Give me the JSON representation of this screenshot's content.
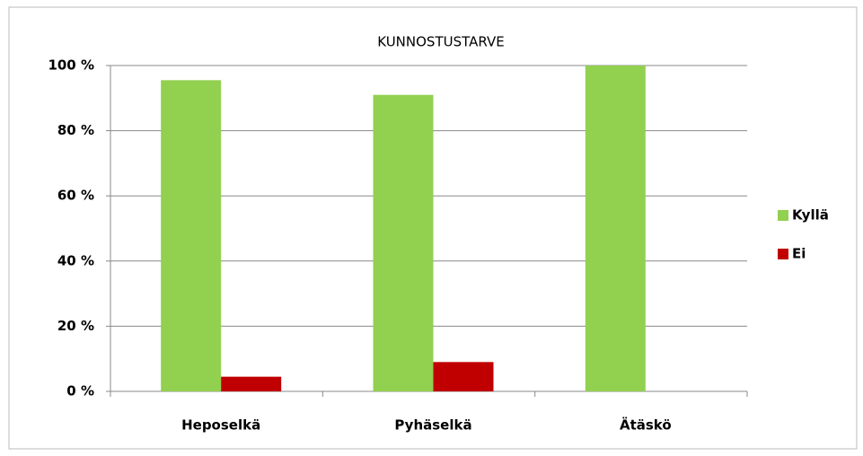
{
  "chart_data": {
    "type": "bar",
    "title": "KUNNOSTUSTARVE",
    "categories": [
      "Heposelkä",
      "Pyhäselkä",
      "Ätäskö"
    ],
    "series": [
      {
        "name": "Kyllä",
        "color": "#92d050",
        "values": [
          95.5,
          91,
          100
        ]
      },
      {
        "name": "Ei",
        "color": "#c00000",
        "values": [
          4.5,
          9,
          0
        ]
      }
    ],
    "ylim": [
      0,
      100
    ],
    "yticks": [
      {
        "value": 0,
        "label": "0 %"
      },
      {
        "value": 20,
        "label": "20 %"
      },
      {
        "value": 40,
        "label": "40 %"
      },
      {
        "value": 60,
        "label": "60 %"
      },
      {
        "value": 80,
        "label": "80 %"
      },
      {
        "value": 100,
        "label": "100 %"
      }
    ],
    "grid": true,
    "legend": "right"
  }
}
